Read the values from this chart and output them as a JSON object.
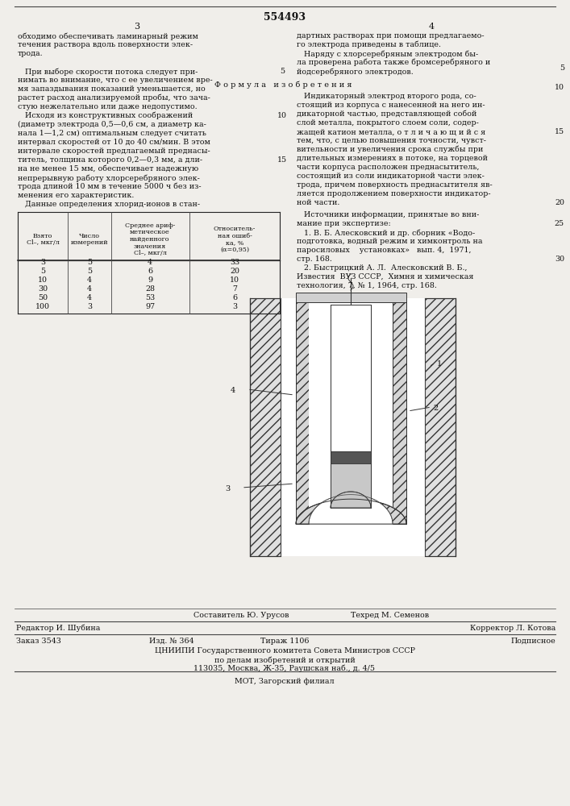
{
  "patent_number": "554493",
  "page_left": "3",
  "page_right": "4",
  "bg_color": "#f0eeea",
  "left_column_text": [
    "обходимо обеспечивать ламинарный режим",
    "течения раствора вдоль поверхности элек-",
    "трода.",
    "",
    "   При выборе скорости потока следует при-",
    "нимать во внимание, что с ее увеличением вре-",
    "мя запаздывания показаний уменьшается, но",
    "растет расход анализируемой пробы, что зача-",
    "стую нежелательно или даже недопустимо.",
    "   Исходя из конструктивных соображений",
    "(диаметр электрода 0,5—0,6 см, а диаметр ка-",
    "нала 1—1,2 см) оптимальным следует считать",
    "интервал скоростей от 10 до 40 см/мин. В этом",
    "интервале скоростей предлагаемый преднасы-",
    "титель, толщина которого 0,2—0,3 мм, а дли-",
    "на не менее 15 мм, обеспечивает надежную",
    "непрерывную работу хлорсеребряного элек-",
    "трода длиной 10 мм в течение 5000 ч без из-",
    "менения его характеристик.",
    "   Данные определения хлорид-ионов в стан-"
  ],
  "right_column_text_top": [
    "дартных растворах при помощи предлагаемо-",
    "го электрода приведены в таблице.",
    "   Наряду с хлорсеребряным электродом бы-",
    "ла проверена работа также бромсеребряного и",
    "йодсеребряного электродов."
  ],
  "formula_title": "Ф о р м у л а   и з о б р е т е н и я",
  "formula_text": [
    "   Индикаторный электрод второго рода, со-",
    "стоящий из корпуса с нанесенной на него ин-",
    "дикаторной частью, представляющей собой",
    "слой металла, покрытого слоем соли, содер-",
    "жащей катион металла, о т л и ч а ю щ и й с я",
    "тем, что, с целью повышения точности, чувст-",
    "вительности и увеличения срока службы при",
    "длительных измерениях в потоке, на торцевой",
    "части корпуса расположен преднасытитель,",
    "состоящий из соли индикаторной части элек-",
    "трода, причем поверхность преднасытителя яв-",
    "ляется продолжением поверхности индикатор-",
    "ной части."
  ],
  "sources_text": [
    "   Источники информации, принятые во вни-",
    "мание при экспертизе:",
    "   1. В. Б. Алесковский и др. сборник «Водо-",
    "подготовка, водный режим и химконтроль на",
    "паросиловых    установках»   вып. 4,  1971,",
    "стр. 168.",
    "   2. Быстрицкий А. Л.  Алесковский В. Б.,",
    "Известия  ВУЗ СССР,  Химня и химическая",
    "технология, 7, № 1, 1964, стр. 168."
  ],
  "table_data": [
    [
      3,
      5,
      4,
      33
    ],
    [
      5,
      5,
      6,
      20
    ],
    [
      10,
      4,
      9,
      10
    ],
    [
      30,
      4,
      28,
      7
    ],
    [
      50,
      4,
      53,
      6
    ],
    [
      100,
      3,
      97,
      3
    ]
  ],
  "composer": "Составитель Ю. Урусов",
  "editor": "Редактор И. Шубина",
  "techred": "Техред М. Семенов",
  "corrector": "Корректор Л. Котова",
  "order": "Заказ 3543",
  "izd": "Изд. № 364",
  "tirazh": "Тираж 1106",
  "podpisnoe": "Подписное",
  "org_line1": "ЦНИИПИ Государственного комитета Совета Министров СССР",
  "org_line2": "по делам изобретений и открытий",
  "org_line3": "113035, Москва, Ж-35, Раушская наб., д. 4/5",
  "org_line4": "МОТ, Загорский филиал"
}
